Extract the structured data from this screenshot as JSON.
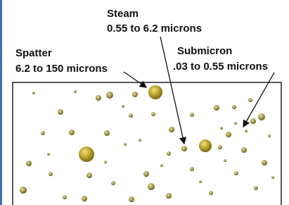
{
  "labels": {
    "steam": {
      "name": "Steam",
      "range": "0.55 to 6.2 microns"
    },
    "spatter": {
      "name": "Spatter",
      "range": "6.2 to 150 microns"
    },
    "submicron": {
      "name": "Submicron",
      "range": ".03 to 0.55 microns"
    }
  }
}
